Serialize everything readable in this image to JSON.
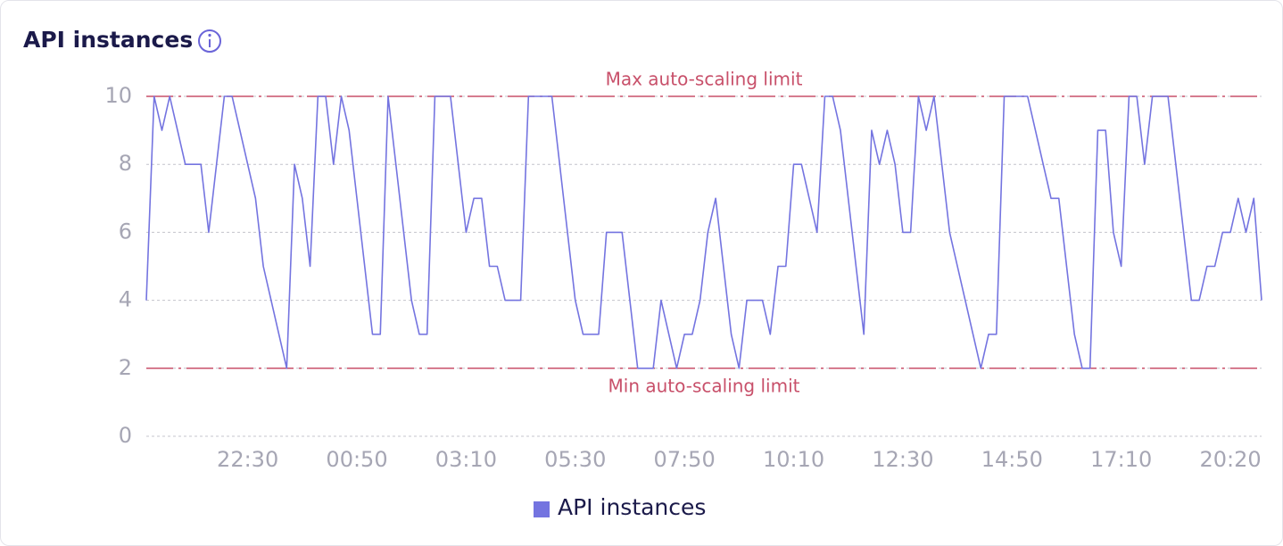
{
  "chart_data": {
    "type": "line",
    "title": "API instances",
    "categories": [
      null,
      null,
      null,
      null,
      null,
      null,
      null,
      null,
      null,
      null,
      null,
      null,
      null,
      "22:30",
      null,
      null,
      null,
      null,
      null,
      null,
      null,
      null,
      null,
      null,
      null,
      null,
      null,
      "00:50",
      null,
      null,
      null,
      null,
      null,
      null,
      null,
      null,
      null,
      null,
      null,
      null,
      null,
      "03:10",
      null,
      null,
      null,
      null,
      null,
      null,
      null,
      null,
      null,
      null,
      null,
      null,
      null,
      "05:30",
      null,
      null,
      null,
      null,
      null,
      null,
      null,
      null,
      null,
      null,
      null,
      null,
      null,
      "07:50",
      null,
      null,
      null,
      null,
      null,
      null,
      null,
      null,
      null,
      null,
      null,
      null,
      null,
      "10:10",
      null,
      null,
      null,
      null,
      null,
      null,
      null,
      null,
      null,
      null,
      null,
      null,
      null,
      "12:30",
      null,
      null,
      null,
      null,
      null,
      null,
      null,
      null,
      null,
      null,
      null,
      null,
      null,
      "14:50",
      null,
      null,
      null,
      null,
      null,
      null,
      null,
      null,
      null,
      null,
      null,
      null,
      null,
      "17:10",
      null,
      null,
      null,
      null,
      null,
      null,
      null,
      null,
      null,
      null,
      null,
      null,
      null,
      "20:20",
      null,
      null,
      null,
      null
    ],
    "series": [
      {
        "name": "API instances",
        "color": "#7474e0",
        "values": [
          4,
          10,
          9,
          10,
          9,
          8,
          8,
          8,
          6,
          8,
          10,
          10,
          9,
          8,
          7,
          5,
          4,
          3,
          2,
          8,
          7,
          5,
          10,
          10,
          8,
          10,
          9,
          7,
          5,
          3,
          3,
          10,
          8,
          6,
          4,
          3,
          3,
          10,
          10,
          10,
          8,
          6,
          7,
          7,
          5,
          5,
          4,
          4,
          4,
          10,
          10,
          10,
          10,
          8,
          6,
          4,
          3,
          3,
          3,
          6,
          6,
          6,
          4,
          2,
          2,
          2,
          4,
          3,
          2,
          3,
          3,
          4,
          6,
          7,
          5,
          3,
          2,
          4,
          4,
          4,
          3,
          5,
          5,
          8,
          8,
          7,
          6,
          10,
          10,
          9,
          7,
          5,
          3,
          9,
          8,
          9,
          8,
          6,
          6,
          10,
          9,
          10,
          8,
          6,
          5,
          4,
          3,
          2,
          3,
          3,
          10,
          10,
          10,
          10,
          9,
          8,
          7,
          7,
          5,
          3,
          2,
          2,
          9,
          9,
          6,
          5,
          10,
          10,
          8,
          10,
          10,
          10,
          8,
          6,
          4,
          4,
          5,
          5,
          6,
          6,
          7,
          6,
          7,
          4
        ]
      }
    ],
    "reference_lines": [
      {
        "value": 10,
        "label": "Max auto-scaling limit"
      },
      {
        "value": 2,
        "label": "Min auto-scaling limit"
      }
    ],
    "reference_color": "#c8506a",
    "ylim": [
      0,
      10
    ],
    "yticks": [
      0,
      2,
      4,
      6,
      8,
      10
    ],
    "grid": true
  }
}
